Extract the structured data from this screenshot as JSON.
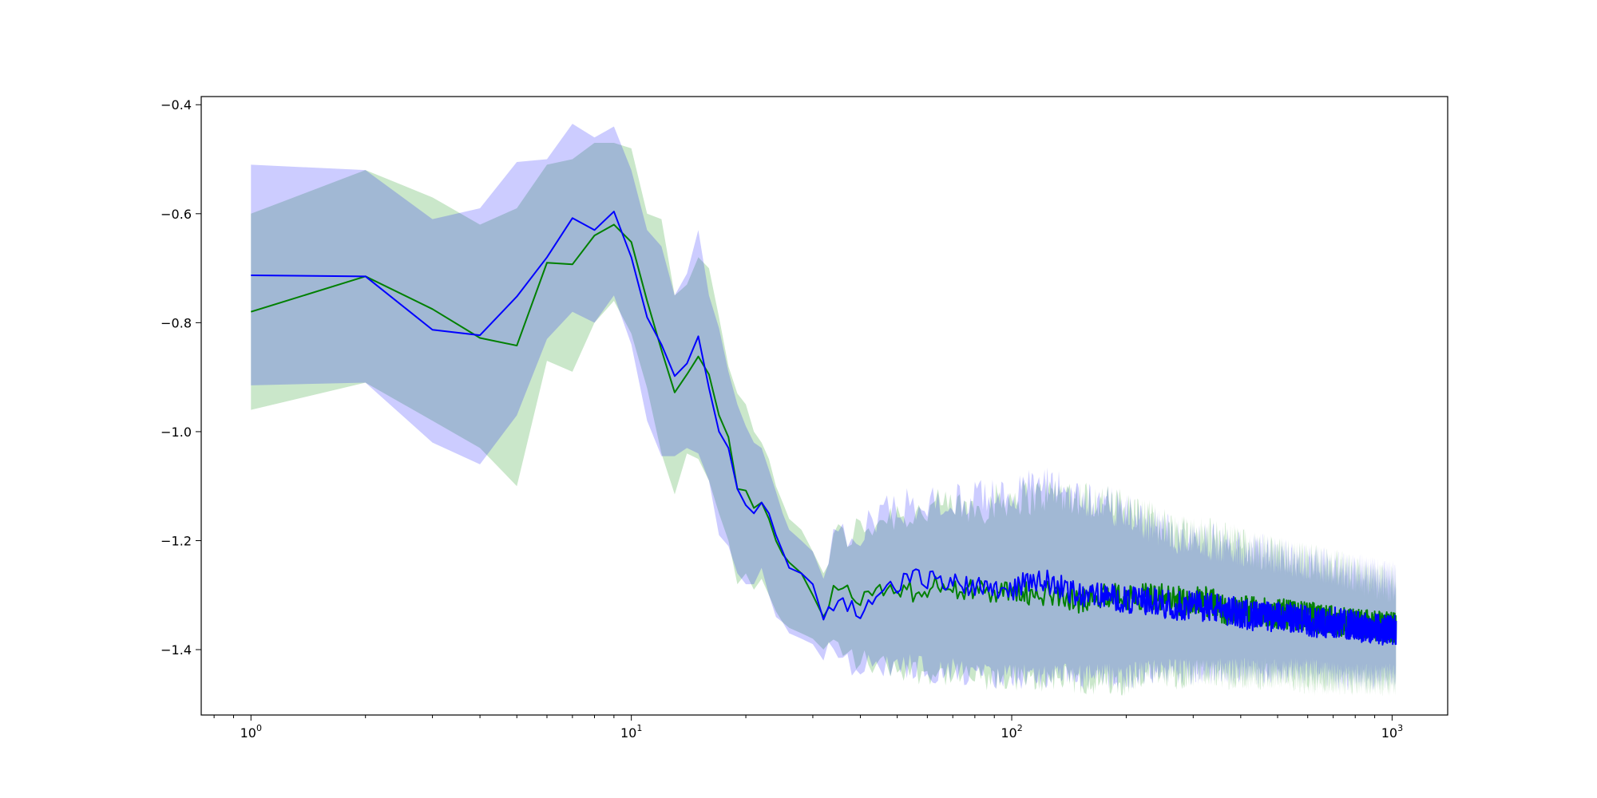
{
  "chart_data": {
    "type": "line",
    "title": "",
    "xlabel": "",
    "ylabel": "",
    "xscale": "log",
    "xlim": [
      0.74,
      1400
    ],
    "ylim": [
      -1.52,
      -0.385
    ],
    "grid": false,
    "legend": "none",
    "y_ticks": [
      -0.4,
      -0.6,
      -0.8,
      -1.0,
      -1.2,
      -1.4
    ],
    "y_tick_labels": [
      "−0.4",
      "−0.6",
      "−0.8",
      "−1.0",
      "−1.2",
      "−1.4"
    ],
    "x_ticks": [
      1,
      10,
      100,
      1000
    ],
    "x_tick_labels": [
      {
        "base": "10",
        "exp": "0"
      },
      {
        "base": "10",
        "exp": "1"
      },
      {
        "base": "10",
        "exp": "2"
      },
      {
        "base": "10",
        "exp": "3"
      }
    ],
    "series": [
      {
        "color": "#008000",
        "band_color": "#2ca02c",
        "band_opacity": 0.25,
        "x": [
          1,
          2,
          3,
          4,
          5,
          6,
          7,
          8,
          9,
          10,
          11,
          12,
          13,
          14,
          15,
          16,
          17,
          18,
          19,
          20,
          21,
          22,
          23,
          24,
          25,
          26,
          28,
          30,
          32,
          34,
          37,
          40,
          45,
          50,
          56,
          63,
          71,
          80,
          90,
          100,
          115,
          130,
          150,
          175,
          200,
          230,
          270,
          320,
          380,
          450,
          530,
          620,
          720,
          850,
          1000,
          1024
        ],
        "mean": [
          -0.78,
          -0.715,
          -0.775,
          -0.828,
          -0.842,
          -0.69,
          -0.693,
          -0.64,
          -0.62,
          -0.652,
          -0.76,
          -0.85,
          -0.928,
          -0.895,
          -0.862,
          -0.895,
          -0.97,
          -1.01,
          -1.105,
          -1.108,
          -1.14,
          -1.13,
          -1.16,
          -1.2,
          -1.225,
          -1.24,
          -1.26,
          -1.3,
          -1.34,
          -1.29,
          -1.3,
          -1.31,
          -1.29,
          -1.29,
          -1.295,
          -1.28,
          -1.29,
          -1.29,
          -1.3,
          -1.29,
          -1.3,
          -1.295,
          -1.31,
          -1.3,
          -1.305,
          -1.3,
          -1.31,
          -1.31,
          -1.33,
          -1.33,
          -1.335,
          -1.34,
          -1.35,
          -1.355,
          -1.36,
          -1.36
        ],
        "upper": [
          -0.6,
          -0.52,
          -0.57,
          -0.62,
          -0.59,
          -0.51,
          -0.5,
          -0.47,
          -0.47,
          -0.48,
          -0.6,
          -0.61,
          -0.75,
          -0.73,
          -0.68,
          -0.7,
          -0.79,
          -0.88,
          -0.93,
          -0.95,
          -1.0,
          -1.02,
          -1.05,
          -1.1,
          -1.13,
          -1.16,
          -1.18,
          -1.22,
          -1.26,
          -1.2,
          -1.19,
          -1.18,
          -1.16,
          -1.15,
          -1.15,
          -1.14,
          -1.14,
          -1.14,
          -1.13,
          -1.12,
          -1.12,
          -1.11,
          -1.12,
          -1.13,
          -1.14,
          -1.16,
          -1.18,
          -1.19,
          -1.2,
          -1.22,
          -1.23,
          -1.24,
          -1.25,
          -1.27,
          -1.28,
          -1.28
        ],
        "lower": [
          -0.96,
          -0.91,
          -0.98,
          -1.03,
          -1.1,
          -0.87,
          -0.89,
          -0.8,
          -0.76,
          -0.82,
          -0.92,
          -1.04,
          -1.115,
          -1.04,
          -1.05,
          -1.09,
          -1.15,
          -1.2,
          -1.28,
          -1.26,
          -1.29,
          -1.27,
          -1.3,
          -1.33,
          -1.35,
          -1.36,
          -1.37,
          -1.38,
          -1.4,
          -1.39,
          -1.41,
          -1.42,
          -1.43,
          -1.43,
          -1.44,
          -1.44,
          -1.45,
          -1.45,
          -1.46,
          -1.45,
          -1.46,
          -1.45,
          -1.46,
          -1.46,
          -1.46,
          -1.45,
          -1.45,
          -1.44,
          -1.45,
          -1.45,
          -1.45,
          -1.46,
          -1.46,
          -1.46,
          -1.46,
          -1.46
        ]
      },
      {
        "color": "#0000ff",
        "band_color": "#0000ff",
        "band_opacity": 0.2,
        "x": [
          1,
          2,
          3,
          4,
          5,
          6,
          7,
          8,
          9,
          10,
          11,
          12,
          13,
          14,
          15,
          16,
          17,
          18,
          19,
          20,
          21,
          22,
          23,
          24,
          25,
          26,
          28,
          30,
          32,
          34,
          37,
          40,
          45,
          50,
          56,
          63,
          71,
          80,
          90,
          100,
          115,
          130,
          150,
          175,
          200,
          230,
          270,
          320,
          380,
          450,
          530,
          620,
          720,
          850,
          1000,
          1024
        ],
        "mean": [
          -0.713,
          -0.715,
          -0.813,
          -0.823,
          -0.752,
          -0.68,
          -0.608,
          -0.63,
          -0.596,
          -0.68,
          -0.79,
          -0.84,
          -0.898,
          -0.875,
          -0.825,
          -0.92,
          -1.0,
          -1.03,
          -1.105,
          -1.135,
          -1.15,
          -1.13,
          -1.15,
          -1.19,
          -1.22,
          -1.25,
          -1.26,
          -1.28,
          -1.345,
          -1.31,
          -1.32,
          -1.33,
          -1.3,
          -1.28,
          -1.27,
          -1.27,
          -1.28,
          -1.28,
          -1.285,
          -1.29,
          -1.27,
          -1.28,
          -1.3,
          -1.3,
          -1.31,
          -1.31,
          -1.32,
          -1.32,
          -1.33,
          -1.34,
          -1.34,
          -1.35,
          -1.35,
          -1.36,
          -1.365,
          -1.365
        ],
        "upper": [
          -0.51,
          -0.52,
          -0.61,
          -0.59,
          -0.505,
          -0.5,
          -0.435,
          -0.46,
          -0.44,
          -0.52,
          -0.63,
          -0.66,
          -0.75,
          -0.71,
          -0.63,
          -0.75,
          -0.81,
          -0.89,
          -0.95,
          -0.99,
          -1.02,
          -1.03,
          -1.07,
          -1.11,
          -1.15,
          -1.18,
          -1.2,
          -1.22,
          -1.27,
          -1.2,
          -1.2,
          -1.19,
          -1.15,
          -1.14,
          -1.13,
          -1.13,
          -1.13,
          -1.12,
          -1.12,
          -1.11,
          -1.1,
          -1.1,
          -1.12,
          -1.13,
          -1.15,
          -1.17,
          -1.19,
          -1.2,
          -1.21,
          -1.22,
          -1.23,
          -1.24,
          -1.25,
          -1.26,
          -1.27,
          -1.27
        ],
        "lower": [
          -0.915,
          -0.91,
          -1.02,
          -1.06,
          -0.97,
          -0.83,
          -0.78,
          -0.8,
          -0.75,
          -0.84,
          -0.98,
          -1.045,
          -1.045,
          -1.03,
          -1.04,
          -1.09,
          -1.19,
          -1.21,
          -1.26,
          -1.28,
          -1.28,
          -1.25,
          -1.3,
          -1.34,
          -1.35,
          -1.37,
          -1.38,
          -1.39,
          -1.42,
          -1.4,
          -1.42,
          -1.43,
          -1.43,
          -1.43,
          -1.43,
          -1.44,
          -1.44,
          -1.45,
          -1.45,
          -1.45,
          -1.45,
          -1.45,
          -1.45,
          -1.45,
          -1.45,
          -1.44,
          -1.44,
          -1.44,
          -1.44,
          -1.44,
          -1.44,
          -1.44,
          -1.45,
          -1.45,
          -1.45,
          -1.45
        ]
      }
    ]
  }
}
